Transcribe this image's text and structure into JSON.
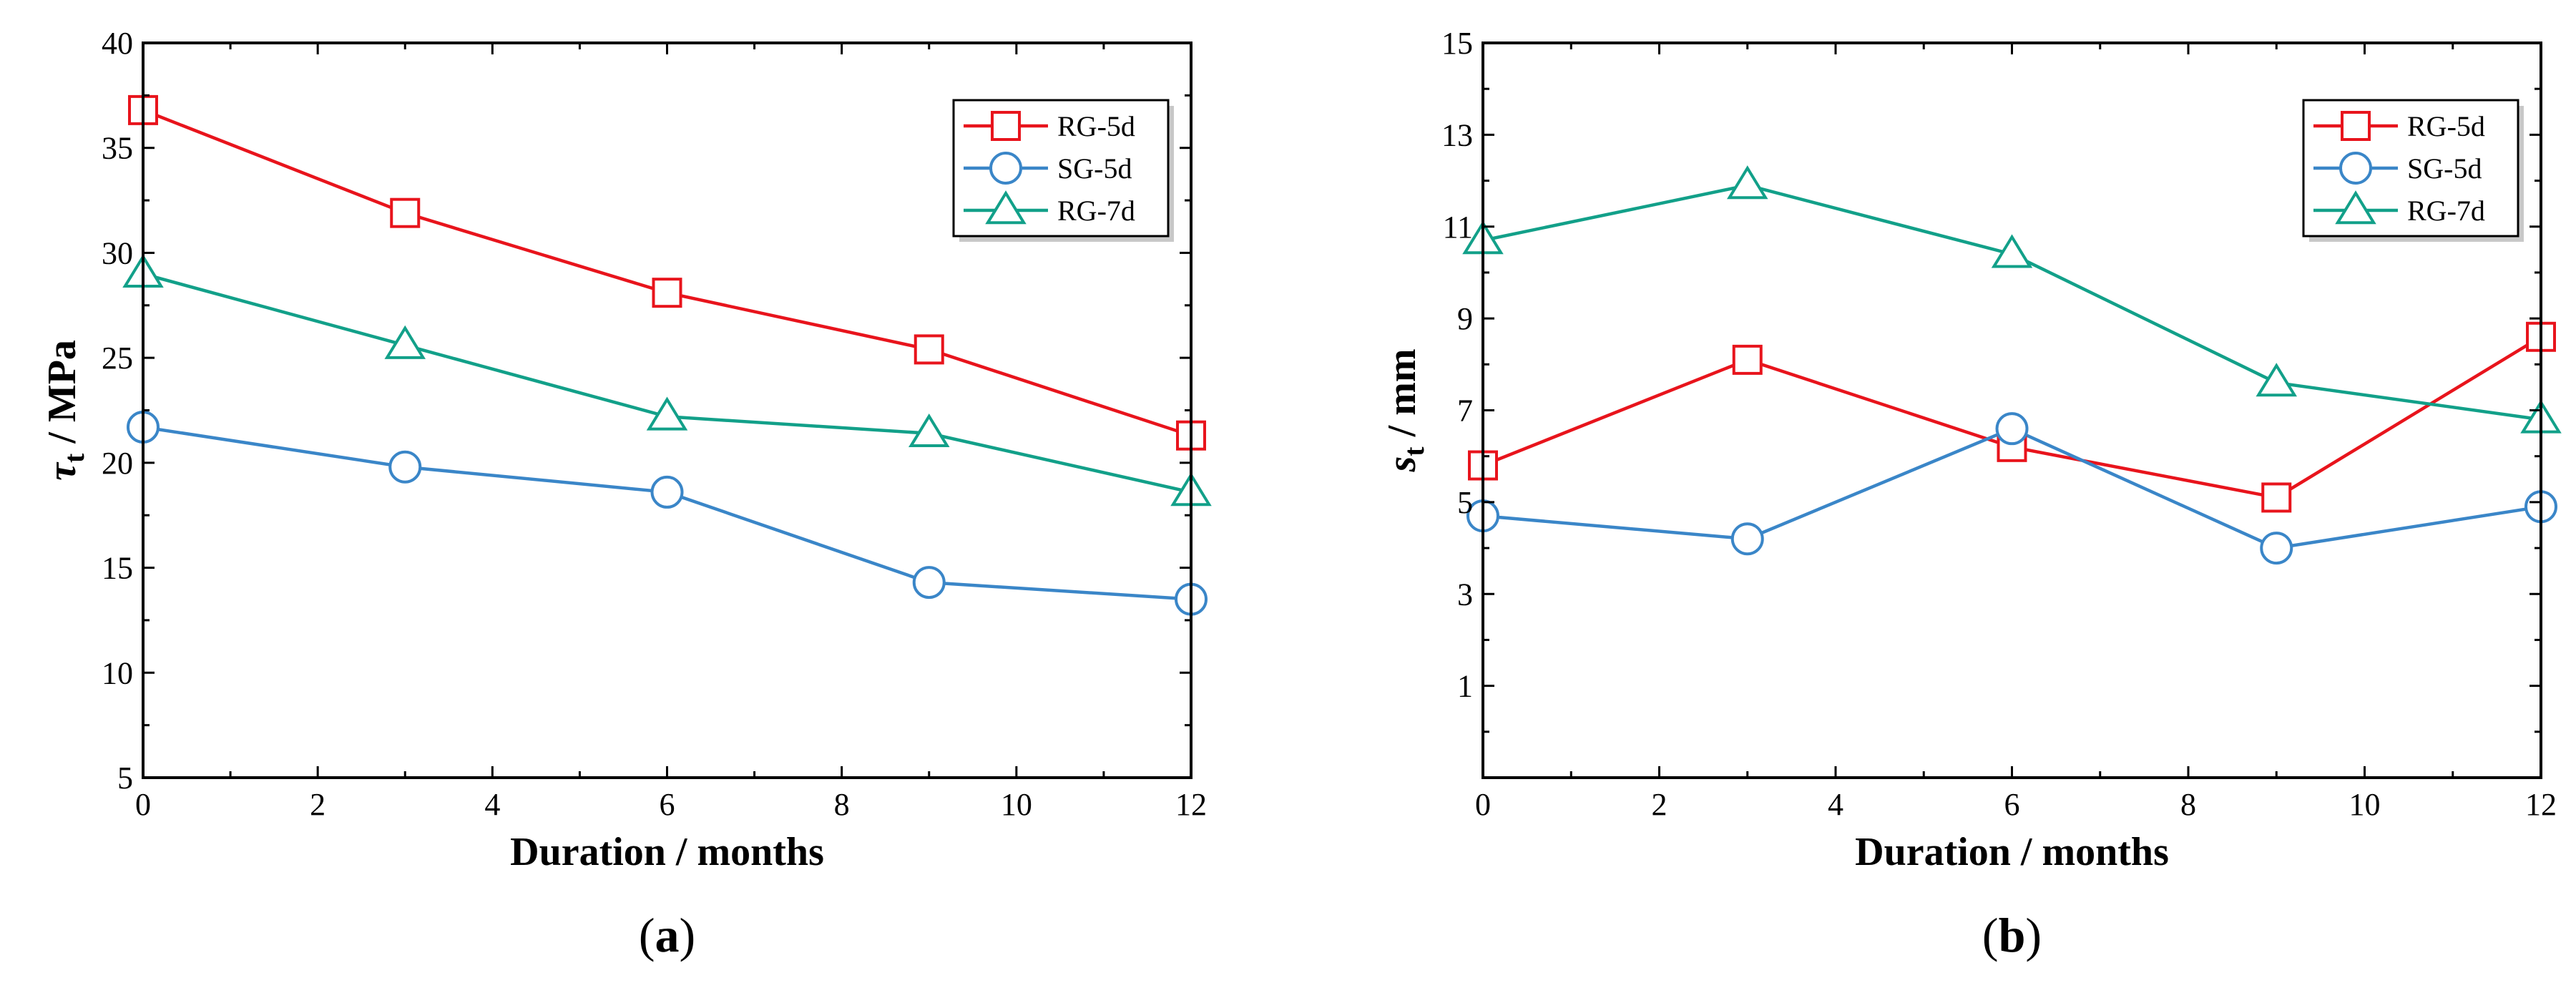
{
  "chart_data": [
    {
      "type": "line",
      "panel_label_open": "(",
      "panel_label_letter": "a",
      "panel_label_close": ")",
      "title": "",
      "xlabel": "Duration / months",
      "ylabel_symbol": "τ",
      "ylabel_sub": "t",
      "ylabel_rest": " / MPa",
      "x_ticks": [
        "0",
        "2",
        "4",
        "6",
        "8",
        "10",
        "12"
      ],
      "y_ticks": [
        "5",
        "10",
        "15",
        "20",
        "25",
        "30",
        "35",
        "40"
      ],
      "xlim": [
        0,
        12
      ],
      "ylim": [
        5,
        40
      ],
      "legend_position": "top-right",
      "x": [
        0,
        3,
        6,
        9,
        12
      ],
      "series": [
        {
          "name": "RG-5d",
          "marker": "square",
          "color": "#e8141c",
          "values": [
            36.8,
            31.9,
            28.1,
            25.4,
            21.3
          ]
        },
        {
          "name": "SG-5d",
          "marker": "circle",
          "color": "#3a86c8",
          "values": [
            21.7,
            19.8,
            18.6,
            14.3,
            13.5
          ]
        },
        {
          "name": "RG-7d",
          "marker": "triangle",
          "color": "#12a089",
          "values": [
            29.0,
            25.6,
            22.2,
            21.4,
            18.6
          ]
        }
      ]
    },
    {
      "type": "line",
      "panel_label_open": "(",
      "panel_label_letter": "b",
      "panel_label_close": ")",
      "title": "",
      "xlabel": "Duration / months",
      "ylabel_symbol": "s",
      "ylabel_sub": "t",
      "ylabel_rest": " / mm",
      "x_ticks": [
        "0",
        "2",
        "4",
        "6",
        "8",
        "10",
        "12"
      ],
      "y_ticks": [
        "1",
        "3",
        "5",
        "7",
        "9",
        "11",
        "13",
        "15"
      ],
      "xlim": [
        0,
        12
      ],
      "ylim": [
        -1,
        15
      ],
      "legend_position": "top-right",
      "x": [
        0,
        3,
        6,
        9,
        12
      ],
      "series": [
        {
          "name": "RG-5d",
          "marker": "square",
          "color": "#e8141c",
          "values": [
            5.8,
            8.1,
            6.2,
            5.1,
            8.6
          ]
        },
        {
          "name": "SG-5d",
          "marker": "circle",
          "color": "#3a86c8",
          "values": [
            4.7,
            4.2,
            6.6,
            4.0,
            4.9
          ]
        },
        {
          "name": "RG-7d",
          "marker": "triangle",
          "color": "#12a089",
          "values": [
            10.7,
            11.9,
            10.4,
            7.6,
            6.8
          ]
        }
      ]
    }
  ]
}
